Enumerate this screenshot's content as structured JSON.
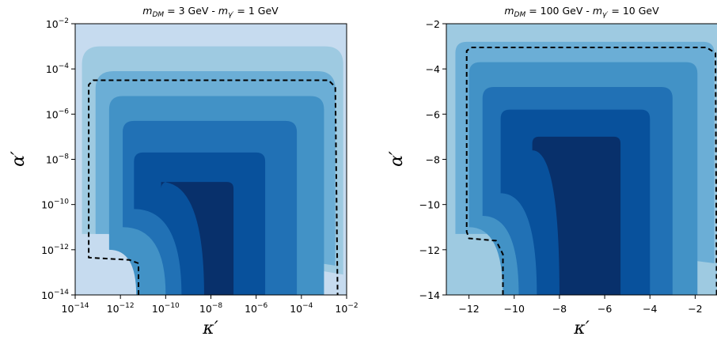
{
  "chart_data": [
    {
      "type": "heatmap",
      "title": "m_DM = 3 GeV - m_γ′ = 1 GeV",
      "title_parts": {
        "a": "m",
        "a_sub": "DM",
        "b": " = 3 GeV - ",
        "c": "m",
        "c_sub": "γ′",
        "d": " = 1 GeV"
      },
      "xlabel": "κ′",
      "ylabel": "α′",
      "x_scale": "log",
      "y_scale": "log",
      "xlim": [
        -14,
        -2
      ],
      "ylim": [
        -14,
        -2
      ],
      "x_ticks": [
        -14,
        -12,
        -10,
        -8,
        -6,
        -4,
        -2
      ],
      "y_ticks": [
        -14,
        -12,
        -10,
        -8,
        -6,
        -4,
        -2
      ],
      "x_tick_labels": [
        {
          "base": "10",
          "exp": "−14"
        },
        {
          "base": "10",
          "exp": "−12"
        },
        {
          "base": "10",
          "exp": "−10"
        },
        {
          "base": "10",
          "exp": "−8"
        },
        {
          "base": "10",
          "exp": "−6"
        },
        {
          "base": "10",
          "exp": "−4"
        },
        {
          "base": "10",
          "exp": "−2"
        }
      ],
      "y_tick_labels": [
        {
          "base": "10",
          "exp": "−14"
        },
        {
          "base": "10",
          "exp": "−12"
        },
        {
          "base": "10",
          "exp": "−10"
        },
        {
          "base": "10",
          "exp": "−8"
        },
        {
          "base": "10",
          "exp": "−6"
        },
        {
          "base": "10",
          "exp": "−4"
        },
        {
          "base": "10",
          "exp": "−2"
        }
      ],
      "background_color": "#c6dbef",
      "levels": [
        {
          "x0": -13.7,
          "x1": -2.15,
          "y0": -13.1,
          "y1": -3.0,
          "corner_radius": 0.8,
          "notch": [
            -13.7,
            -11.3,
            -12.6,
            -11.3
          ],
          "color": "#9ecae1"
        },
        {
          "x0": -13.1,
          "x1": -2.5,
          "y0": -12.7,
          "y1": -4.1,
          "corner_radius": 0.8,
          "notch": [
            -13.1,
            -11.3,
            -12.0,
            -11.3
          ],
          "color": "#6baed6"
        },
        {
          "x0": -12.5,
          "x1": -3.0,
          "y0": -14.0,
          "y1": -5.2,
          "corner_radius": 0.6,
          "notch": [
            -12.5,
            -12.0,
            -11.3,
            -14.0
          ],
          "color": "#4292c6"
        },
        {
          "x0": -11.9,
          "x1": -4.2,
          "y0": -14.0,
          "y1": -6.3,
          "corner_radius": 0.5,
          "notch": [
            -11.9,
            -11.0,
            -10.0,
            -14.0
          ],
          "color": "#2171b5"
        },
        {
          "x0": -11.4,
          "x1": -5.6,
          "y0": -14.0,
          "y1": -7.7,
          "corner_radius": 0.4,
          "notch": [
            -11.4,
            -10.2,
            -9.3,
            -14.0
          ],
          "color": "#08519c"
        },
        {
          "x0": -10.2,
          "x1": -7.0,
          "y0": -14.0,
          "y1": -9.0,
          "corner_radius": 0.3,
          "notch": [
            -10.2,
            -9.0,
            -8.3,
            -14.0
          ],
          "color": "#08306b"
        }
      ],
      "dashed_contour": [
        [
          -11.2,
          -14.0
        ],
        [
          -11.2,
          -12.6
        ],
        [
          -11.6,
          -12.45
        ],
        [
          -13.4,
          -12.35
        ],
        [
          -13.4,
          -4.7
        ],
        [
          -13.2,
          -4.5
        ],
        [
          -2.8,
          -4.5
        ],
        [
          -2.5,
          -4.8
        ],
        [
          -2.4,
          -14.0
        ]
      ]
    },
    {
      "type": "heatmap",
      "title": "m_DM = 100 GeV - m_γ′ = 10 GeV",
      "title_parts": {
        "a": "m",
        "a_sub": "DM",
        "b": " = 100 GeV - ",
        "c": "m",
        "c_sub": "γ′",
        "d": " = 10 GeV"
      },
      "xlabel": "κ′",
      "ylabel": "α′",
      "x_scale": "linear",
      "y_scale": "linear",
      "xlim": [
        -13,
        -1
      ],
      "ylim": [
        -14,
        -2
      ],
      "x_ticks": [
        -12,
        -10,
        -8,
        -6,
        -4,
        -2
      ],
      "y_ticks": [
        -14,
        -12,
        -10,
        -8,
        -6,
        -4,
        -2
      ],
      "x_tick_labels": [
        "−12",
        "−10",
        "−8",
        "−6",
        "−4",
        "−2"
      ],
      "y_tick_labels": [
        "−14",
        "−12",
        "−10",
        "−8",
        "−6",
        "−4",
        "−2"
      ],
      "background_color": "#9ecae1",
      "levels": [
        {
          "x0": -12.6,
          "x1": -1.15,
          "y0": -12.6,
          "y1": -2.8,
          "corner_radius": 0.5,
          "notch": [
            -12.6,
            -11.3,
            -11.2,
            -11.3
          ],
          "color": "#6baed6"
        },
        {
          "x0": -12.0,
          "x1": -1.9,
          "y0": -14.0,
          "y1": -3.7,
          "corner_radius": 0.5,
          "notch": [
            -12.0,
            -11.0,
            -10.5,
            -14.0
          ],
          "color": "#4292c6"
        },
        {
          "x0": -11.4,
          "x1": -3.0,
          "y0": -14.0,
          "y1": -4.8,
          "corner_radius": 0.5,
          "notch": [
            -11.4,
            -10.5,
            -9.8,
            -14.0
          ],
          "color": "#2171b5"
        },
        {
          "x0": -10.6,
          "x1": -4.0,
          "y0": -14.0,
          "y1": -5.8,
          "corner_radius": 0.4,
          "notch": [
            -10.6,
            -9.5,
            -9.0,
            -14.0
          ],
          "color": "#08519c"
        },
        {
          "x0": -9.2,
          "x1": -5.3,
          "y0": -14.0,
          "y1": -7.0,
          "corner_radius": 0.3,
          "notch": [
            -9.2,
            -7.6,
            -8.0,
            -14.0
          ],
          "color": "#08306b"
        }
      ],
      "dashed_contour": [
        [
          -10.5,
          -14.0
        ],
        [
          -10.5,
          -12.2
        ],
        [
          -10.8,
          -11.6
        ],
        [
          -12.0,
          -11.5
        ],
        [
          -12.1,
          -11.2
        ],
        [
          -12.1,
          -3.2
        ],
        [
          -11.9,
          -3.05
        ],
        [
          -1.5,
          -3.05
        ],
        [
          -1.1,
          -3.3
        ],
        [
          -1.05,
          -14.0
        ]
      ]
    }
  ]
}
